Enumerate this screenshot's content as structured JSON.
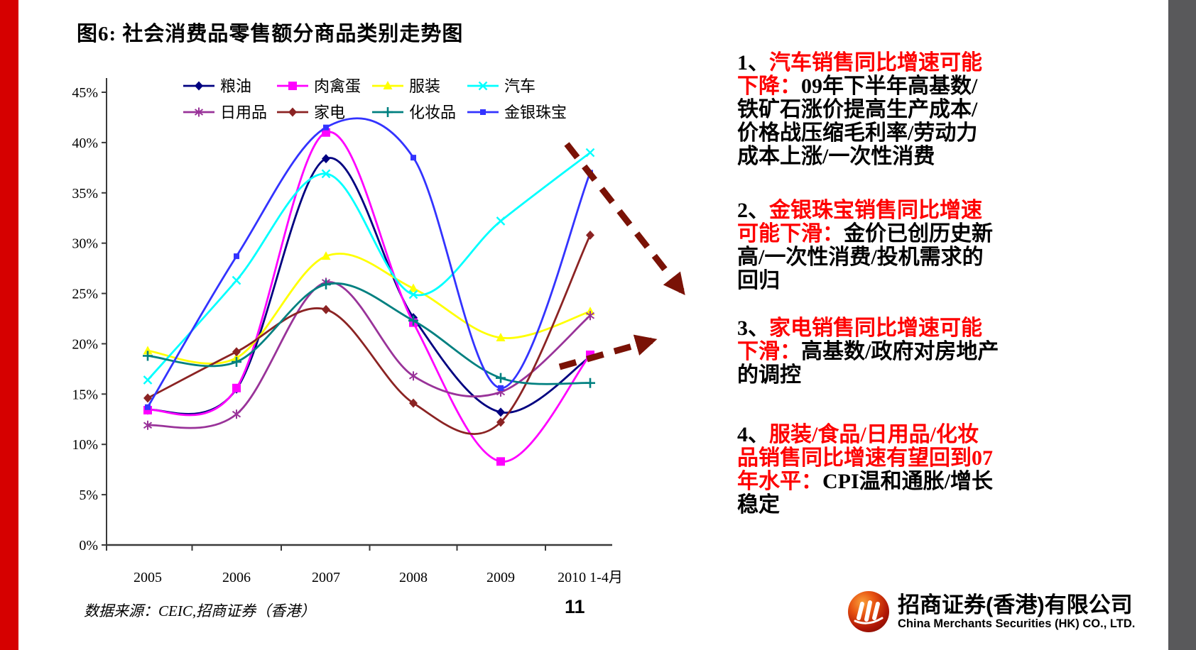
{
  "page": {
    "title": "图6:  社会消费品零售额分商品类别走势图",
    "source": "数据来源：CEIC,招商证券（香港）",
    "page_number": "11",
    "left_bar_color": "#d60000",
    "right_bar_color": "#59595b",
    "accent_red": "#fe0000",
    "arrow_color": "#7a1206"
  },
  "chart_data": {
    "type": "line",
    "title": "社会消费品零售额分商品类别走势图",
    "categories": [
      "2005",
      "2006",
      "2007",
      "2008",
      "2009",
      "2010 1-4月"
    ],
    "y_ticks": [
      "0%",
      "5%",
      "10%",
      "15%",
      "20%",
      "25%",
      "30%",
      "35%",
      "40%",
      "45%"
    ],
    "ylim": [
      0,
      45
    ],
    "grid": false,
    "legend_position": "top",
    "series": [
      {
        "name": "粮油",
        "color": "#000080",
        "marker": "diamond",
        "values": [
          13.4,
          15.5,
          38.4,
          22.6,
          13.2,
          18.7
        ]
      },
      {
        "name": "肉禽蛋",
        "color": "#ff00ff",
        "marker": "square",
        "values": [
          13.4,
          15.6,
          41.0,
          22.1,
          8.3,
          18.9
        ]
      },
      {
        "name": "服装",
        "color": "#ffff00",
        "marker": "triangle",
        "values": [
          19.3,
          18.6,
          28.7,
          25.5,
          20.6,
          23.2
        ]
      },
      {
        "name": "汽车",
        "color": "#00ffff",
        "marker": "x",
        "values": [
          16.4,
          26.3,
          36.9,
          24.9,
          32.2,
          39.0
        ]
      },
      {
        "name": "日用品",
        "color": "#993399",
        "marker": "star",
        "values": [
          11.9,
          13.0,
          26.1,
          16.8,
          15.2,
          22.8
        ]
      },
      {
        "name": "家电",
        "color": "#8b2323",
        "marker": "diamond",
        "values": [
          14.6,
          19.2,
          23.4,
          14.1,
          12.2,
          30.8
        ]
      },
      {
        "name": "化妆品",
        "color": "#008080",
        "marker": "plus",
        "values": [
          18.8,
          18.2,
          25.9,
          22.3,
          16.6,
          16.1
        ]
      },
      {
        "name": "金银珠宝",
        "color": "#3333ff",
        "marker": "square-small",
        "values": [
          13.7,
          28.7,
          41.5,
          38.5,
          15.6,
          37.0
        ]
      }
    ]
  },
  "annotations": [
    {
      "lines": [
        [
          {
            "text": "1、",
            "color": "black"
          },
          {
            "text": "汽车销售同比增速可能",
            "color": "red"
          }
        ],
        [
          {
            "text": "下降：",
            "color": "red"
          },
          {
            "text": "09年下半年高基数/",
            "color": "black"
          }
        ],
        [
          {
            "text": "铁矿石涨价提高生产成本/",
            "color": "black"
          }
        ],
        [
          {
            "text": "价格战压缩毛利率/劳动力",
            "color": "black"
          }
        ],
        [
          {
            "text": "成本上涨/一次性消费",
            "color": "black"
          }
        ]
      ]
    },
    {
      "lines": [
        [
          {
            "text": "2、",
            "color": "black"
          },
          {
            "text": "金银珠宝销售同比增速",
            "color": "red"
          }
        ],
        [
          {
            "text": "可能下滑：",
            "color": "red"
          },
          {
            "text": "金价已创历史新",
            "color": "black"
          }
        ],
        [
          {
            "text": "高/一次性消费/投机需求的",
            "color": "black"
          }
        ],
        [
          {
            "text": "回归",
            "color": "black"
          }
        ]
      ]
    },
    {
      "lines": [
        [
          {
            "text": "3、",
            "color": "black"
          },
          {
            "text": "家电销售同比增速可能",
            "color": "red"
          }
        ],
        [
          {
            "text": "下滑：",
            "color": "red"
          },
          {
            "text": "高基数/政府对房地产",
            "color": "black"
          }
        ],
        [
          {
            "text": "的调控",
            "color": "black"
          }
        ]
      ]
    },
    {
      "lines": [
        [
          {
            "text": "4、",
            "color": "black"
          },
          {
            "text": "服装/食品/日用品/化妆",
            "color": "red"
          }
        ],
        [
          {
            "text": "品销售同比增速有望回到07",
            "color": "red"
          }
        ],
        [
          {
            "text": "年水平：",
            "color": "red"
          },
          {
            "text": "CPI温和通胀/增长",
            "color": "black"
          }
        ],
        [
          {
            "text": "稳定",
            "color": "black"
          }
        ]
      ]
    }
  ],
  "logo": {
    "cn": "招商证券(香港)有限公司",
    "en": "China Merchants Securities (HK) CO., LTD."
  }
}
